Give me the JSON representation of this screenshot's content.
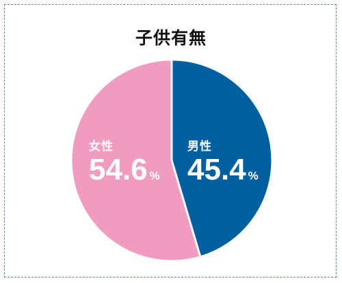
{
  "chart_data": {
    "type": "pie",
    "title": "子供有無",
    "slices": [
      {
        "name": "男性",
        "value": 45.4,
        "display": "45.4",
        "unit": "%",
        "color": "#005f9e"
      },
      {
        "name": "女性",
        "value": 54.6,
        "display": "54.6",
        "unit": "%",
        "color": "#f29bc1"
      }
    ],
    "start_angle_deg": 0,
    "direction": "clockwise",
    "label_color": "#ffffff",
    "separator_color": "#ffffff",
    "legend": "none"
  }
}
